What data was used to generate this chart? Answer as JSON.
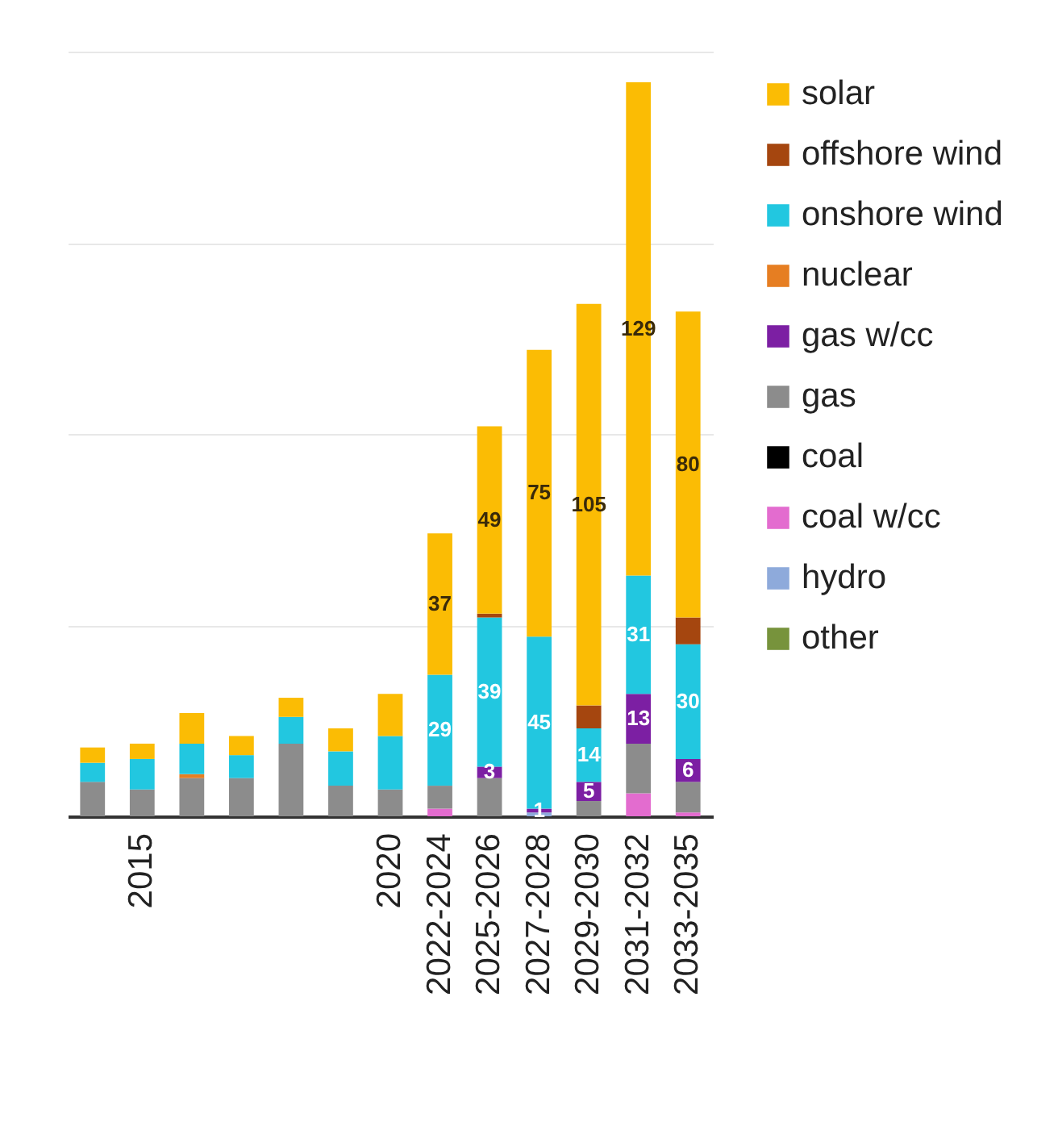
{
  "chart_data": {
    "type": "bar",
    "stacked": true,
    "categories": [
      null,
      "2015",
      null,
      null,
      null,
      null,
      "2020",
      "2022-2024",
      "2025-2026",
      "2027-2028",
      "2029-2030",
      "2031-2032",
      "2033-2035"
    ],
    "series": [
      {
        "name": "other",
        "color": "#77933c",
        "values": [
          null,
          null,
          null,
          null,
          null,
          null,
          null,
          null,
          null,
          null,
          null,
          null,
          null
        ]
      },
      {
        "name": "hydro",
        "color": "#8eaadb",
        "values": [
          null,
          null,
          null,
          null,
          null,
          null,
          null,
          null,
          null,
          1,
          null,
          null,
          null
        ]
      },
      {
        "name": "coal w/cc",
        "color": "#e36ccf",
        "values": [
          null,
          null,
          null,
          null,
          null,
          null,
          null,
          2,
          null,
          null,
          null,
          6,
          1
        ]
      },
      {
        "name": "coal",
        "color": "#000000",
        "values": [
          null,
          null,
          null,
          null,
          null,
          null,
          null,
          null,
          null,
          null,
          null,
          null,
          null
        ]
      },
      {
        "name": "gas",
        "color": "#8c8c8c",
        "values": [
          9,
          7,
          10,
          10,
          19,
          8,
          7,
          6,
          10,
          null,
          4,
          13,
          8
        ]
      },
      {
        "name": "gas w/cc",
        "color": "#7c1fa3",
        "values": [
          null,
          null,
          null,
          null,
          null,
          null,
          null,
          null,
          3,
          1,
          5,
          13,
          6
        ],
        "value_labels": [
          null,
          null,
          null,
          null,
          null,
          null,
          null,
          null,
          "3",
          "1",
          "5",
          "13",
          "6"
        ]
      },
      {
        "name": "nuclear",
        "color": "#e67e22",
        "values": [
          null,
          null,
          1,
          null,
          null,
          null,
          null,
          null,
          null,
          null,
          null,
          null,
          null
        ]
      },
      {
        "name": "onshore wind",
        "color": "#22c7e0",
        "values": [
          5,
          8,
          8,
          6,
          7,
          9,
          14,
          29,
          39,
          45,
          14,
          31,
          30
        ],
        "value_labels": [
          null,
          null,
          null,
          null,
          null,
          null,
          null,
          "29",
          "39",
          "45",
          "14",
          "31",
          "30"
        ]
      },
      {
        "name": "offshore wind",
        "color": "#a5460f",
        "values": [
          null,
          null,
          null,
          null,
          null,
          null,
          null,
          null,
          1,
          null,
          6,
          null,
          7
        ]
      },
      {
        "name": "solar",
        "color": "#fbbc04",
        "values": [
          4,
          4,
          8,
          5,
          5,
          6,
          11,
          37,
          49,
          75,
          105,
          129,
          80
        ],
        "value_labels": [
          null,
          null,
          null,
          null,
          null,
          null,
          null,
          "37",
          "49",
          "75",
          "105",
          "129",
          "80"
        ]
      }
    ],
    "ylim": [
      0,
      200
    ],
    "yticks": [
      {
        "value": 0,
        "label": null
      },
      {
        "value": 50,
        "label": null
      },
      {
        "value": 100,
        "label": null
      },
      {
        "value": 150,
        "label": null
      },
      {
        "value": 200,
        "label": null
      }
    ],
    "grid": "y",
    "tick_labels": "x",
    "legend": "top right"
  }
}
